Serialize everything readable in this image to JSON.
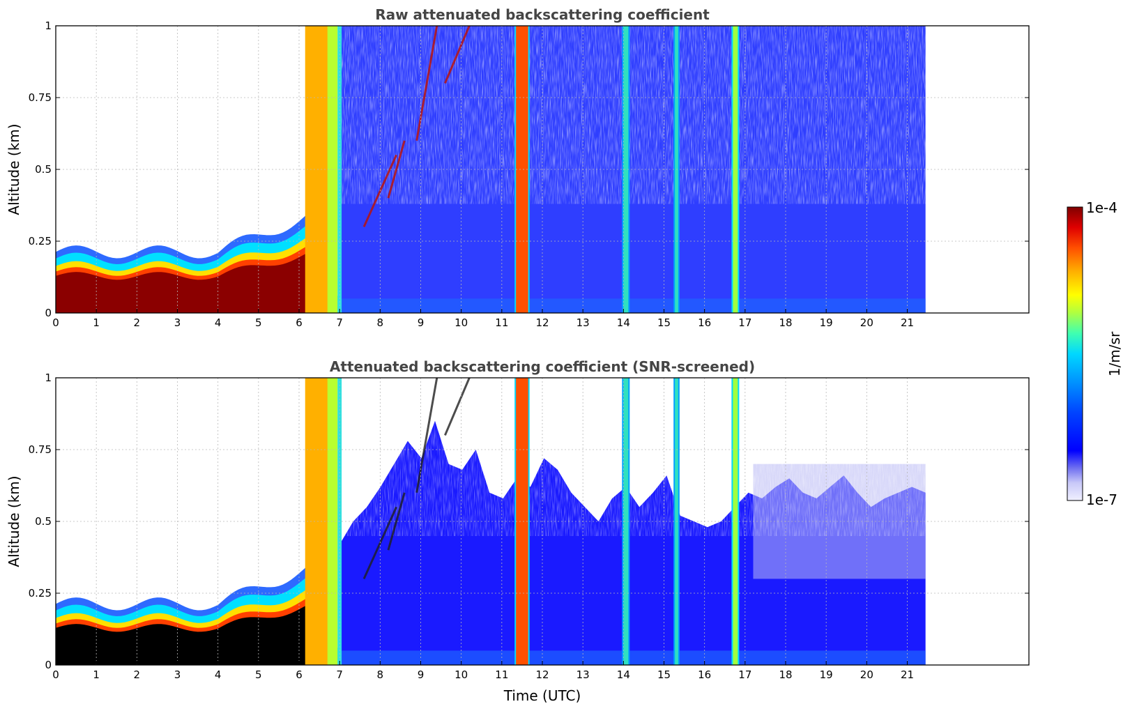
{
  "chart_data": [
    {
      "type": "heatmap",
      "title": "Raw attenuated backscattering coefficient",
      "xlabel": "",
      "ylabel": "Altitude (km)",
      "xlim": [
        0,
        24
      ],
      "ylim": [
        0,
        1
      ],
      "x_ticks": [
        0,
        1,
        2,
        3,
        4,
        5,
        6,
        7,
        8,
        9,
        10,
        11,
        12,
        13,
        14,
        15,
        16,
        17,
        18,
        19,
        20,
        21
      ],
      "y_ticks": [
        0,
        0.25,
        0.5,
        0.75,
        1
      ],
      "y_tick_labels": [
        "0",
        "0.25",
        "0.5",
        "0.75",
        "1"
      ],
      "grid": true,
      "data_end_time": 21.45,
      "features": [
        {
          "kind": "surface-aerosol-layer",
          "time_range": [
            0,
            6.1
          ],
          "top_km": 0.22,
          "intensity": "1e-4 (saturated)"
        },
        {
          "kind": "fog/precipitation",
          "time_range": [
            6.1,
            6.9
          ],
          "intensity": "~1e-5"
        },
        {
          "kind": "rising cloud streaks",
          "time_range": [
            7.4,
            10.2
          ],
          "altitude_km": [
            0.25,
            1.0
          ],
          "intensity": "1e-4"
        },
        {
          "kind": "precipitation column",
          "time_range": [
            11.35,
            11.65
          ],
          "intensity": "~3e-5"
        },
        {
          "kind": "precipitation column",
          "time": 14.05,
          "intensity": "~1e-5"
        },
        {
          "kind": "precipitation column",
          "time": 15.3,
          "intensity": "~5e-6"
        },
        {
          "kind": "precipitation column",
          "time": 16.75,
          "intensity": "~1e-5"
        },
        {
          "kind": "noisy background",
          "time_range": [
            7,
            21.45
          ],
          "intensity": "~1e-6"
        }
      ]
    },
    {
      "type": "heatmap",
      "title": "Attenuated backscattering coefficient (SNR-screened)",
      "xlabel": "Time (UTC)",
      "ylabel": "Altitude (km)",
      "xlim": [
        0,
        24
      ],
      "ylim": [
        0,
        1
      ],
      "x_ticks": [
        0,
        1,
        2,
        3,
        4,
        5,
        6,
        7,
        8,
        9,
        10,
        11,
        12,
        13,
        14,
        15,
        16,
        17,
        18,
        19,
        20,
        21
      ],
      "y_ticks": [
        0,
        0.25,
        0.5,
        0.75,
        1
      ],
      "y_tick_labels": [
        "0",
        "0.25",
        "0.5",
        "0.75",
        "1"
      ],
      "grid": true,
      "data_end_time": 21.45,
      "features": [
        {
          "kind": "surface-aerosol-layer (saturated, shown black)",
          "time_range": [
            0,
            6.2
          ],
          "top_km": 0.22
        },
        {
          "kind": "fog/precipitation",
          "time_range": [
            6.1,
            6.9
          ],
          "intensity": "~1e-5"
        },
        {
          "kind": "aerosol layer after screening",
          "time_range": [
            7,
            21.45
          ],
          "top_km": [
            0.45,
            0.8
          ]
        },
        {
          "kind": "precipitation column",
          "time_range": [
            11.35,
            11.65
          ],
          "intensity": "~3e-5"
        },
        {
          "kind": "precipitation column",
          "time": 14.05
        },
        {
          "kind": "precipitation column",
          "time": 15.3
        },
        {
          "kind": "precipitation column",
          "time": 16.75
        }
      ]
    }
  ],
  "colorbar": {
    "label": "1/m/sr",
    "max_label": "1e-4",
    "min_label": "1e-7",
    "scale": "log",
    "colormap": [
      "#f0f0ff",
      "#c8c8f8",
      "#7070f0",
      "#0000ff",
      "#0044ff",
      "#0090ff",
      "#00d8ff",
      "#40ffb0",
      "#b0ff40",
      "#ffff00",
      "#ffb000",
      "#ff5000",
      "#e00000",
      "#800000"
    ]
  }
}
